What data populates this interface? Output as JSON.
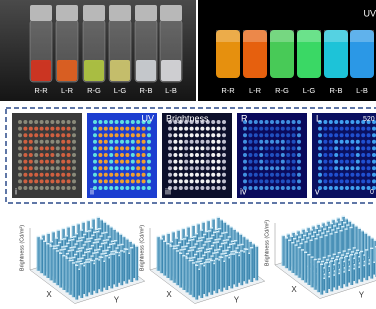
{
  "top": {
    "left_labels": [
      "R-R",
      "L-R",
      "R-G",
      "L-G",
      "R-B",
      "L-B"
    ],
    "right_title": "UV",
    "right_labels": [
      "R-R",
      "L-R",
      "R-G",
      "L-G",
      "R-B",
      "L-B"
    ]
  },
  "panels": [
    {
      "numeral": "i"
    },
    {
      "numeral": "ii",
      "label": "UV"
    },
    {
      "numeral": "iii",
      "label": "Brightness"
    },
    {
      "numeral": "iv",
      "label": "R"
    },
    {
      "numeral": "v",
      "label": "L",
      "scale_max": "520",
      "scale_min": "0"
    }
  ],
  "plots": [
    {
      "z_label": "Brightness (Cd/m²)",
      "x_label": "X",
      "y_label": "Y"
    },
    {
      "z_label": "Brightness (Cd/m²)",
      "x_label": "X",
      "y_label": "Y"
    },
    {
      "z_label": "Brightness (Cd/m²)",
      "x_label": "X",
      "y_label": "Y"
    }
  ]
}
